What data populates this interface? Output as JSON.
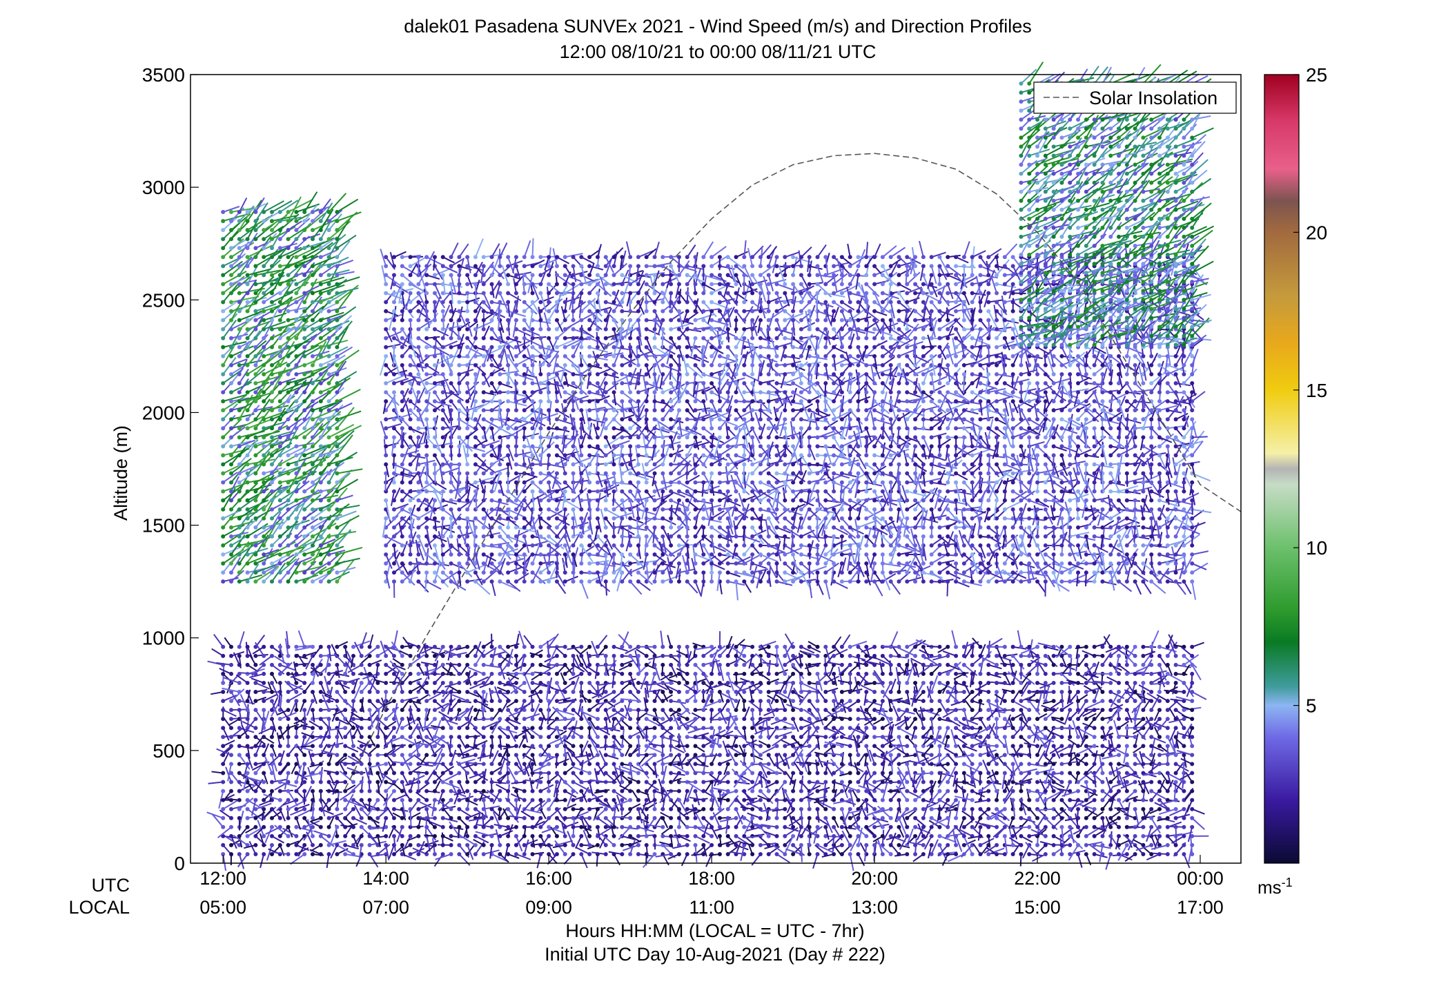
{
  "figure": {
    "title_line1": "dalek01 Pasadena SUNVEx 2021 - Wind Speed (m/s) and Direction Profiles",
    "title_line2": "12:00 08/10/21 to 00:00 08/11/21  UTC",
    "xlabel_line1": "Hours HH:MM  (LOCAL = UTC - 7hr)",
    "xlabel_line2": "Initial UTC Day 10-Aug-2021 (Day # 222)",
    "ylabel": "Altitude (m)",
    "row_label_utc": "UTC",
    "row_label_local": "LOCAL",
    "legend_label": "Solar Insolation",
    "colorbar_unit": "ms",
    "colorbar_unit_exp": "-1"
  },
  "chart_data": {
    "type": "wind-barb profile",
    "x_utc_ticks": [
      "12:00",
      "14:00",
      "16:00",
      "18:00",
      "20:00",
      "22:00",
      "00:00"
    ],
    "x_local_ticks": [
      "05:00",
      "07:00",
      "09:00",
      "11:00",
      "13:00",
      "15:00",
      "17:00"
    ],
    "x_tick_hours": [
      12,
      14,
      16,
      18,
      20,
      22,
      24
    ],
    "xlim_hours": [
      11.6,
      24.5
    ],
    "ylim": [
      0,
      3500
    ],
    "y_ticks": [
      0,
      500,
      1000,
      1500,
      2000,
      2500,
      3000,
      3500
    ],
    "colorbar": {
      "min": 0,
      "max": 25,
      "ticks": [
        5,
        10,
        15,
        20,
        25
      ],
      "stops": [
        {
          "v": 0,
          "c": "#0a0a33"
        },
        {
          "v": 2,
          "c": "#3a1aa0"
        },
        {
          "v": 4,
          "c": "#6f6ae6"
        },
        {
          "v": 5,
          "c": "#8db5f2"
        },
        {
          "v": 5.6,
          "c": "#3f9c9c"
        },
        {
          "v": 7,
          "c": "#0a7a24"
        },
        {
          "v": 8,
          "c": "#2c9a2c"
        },
        {
          "v": 10,
          "c": "#6cc06c"
        },
        {
          "v": 12,
          "c": "#c6dcc6"
        },
        {
          "v": 12.5,
          "c": "#b4b4b4"
        },
        {
          "v": 13,
          "c": "#f5f0a8"
        },
        {
          "v": 15,
          "c": "#f0cc10"
        },
        {
          "v": 16.5,
          "c": "#e8a81c"
        },
        {
          "v": 18,
          "c": "#c49a3c"
        },
        {
          "v": 20,
          "c": "#a26a3e"
        },
        {
          "v": 21,
          "c": "#7c5450"
        },
        {
          "v": 22,
          "c": "#e8608a"
        },
        {
          "v": 23.5,
          "c": "#d83a6a"
        },
        {
          "v": 25,
          "c": "#a00020"
        }
      ]
    },
    "solar_insolation": {
      "x_hours": [
        13.5,
        14,
        14.5,
        15,
        15.5,
        16,
        16.5,
        17,
        17.5,
        18,
        18.5,
        19,
        19.5,
        20,
        20.5,
        21,
        21.5,
        22,
        22.5,
        23,
        23.5,
        24,
        24.5
      ],
      "y_alt": [
        330,
        690,
        1010,
        1310,
        1610,
        1910,
        2190,
        2440,
        2670,
        2860,
        3010,
        3100,
        3140,
        3150,
        3130,
        3080,
        2970,
        2800,
        2580,
        2280,
        1980,
        1680,
        1560
      ]
    },
    "wind_field_regions": [
      {
        "t": [
          12.0,
          13.4
        ],
        "alt": [
          1250,
          2890
        ],
        "speed": [
          3,
          9
        ]
      },
      {
        "t": [
          14.0,
          23.9
        ],
        "alt": [
          1250,
          2700
        ],
        "speed": [
          1.5,
          5
        ]
      },
      {
        "t": [
          12.0,
          23.9
        ],
        "alt": [
          40,
          980
        ],
        "speed": [
          0.5,
          4
        ]
      },
      {
        "t": [
          21.8,
          23.9
        ],
        "alt": [
          2300,
          3480
        ],
        "speed": [
          3,
          8
        ]
      }
    ]
  }
}
